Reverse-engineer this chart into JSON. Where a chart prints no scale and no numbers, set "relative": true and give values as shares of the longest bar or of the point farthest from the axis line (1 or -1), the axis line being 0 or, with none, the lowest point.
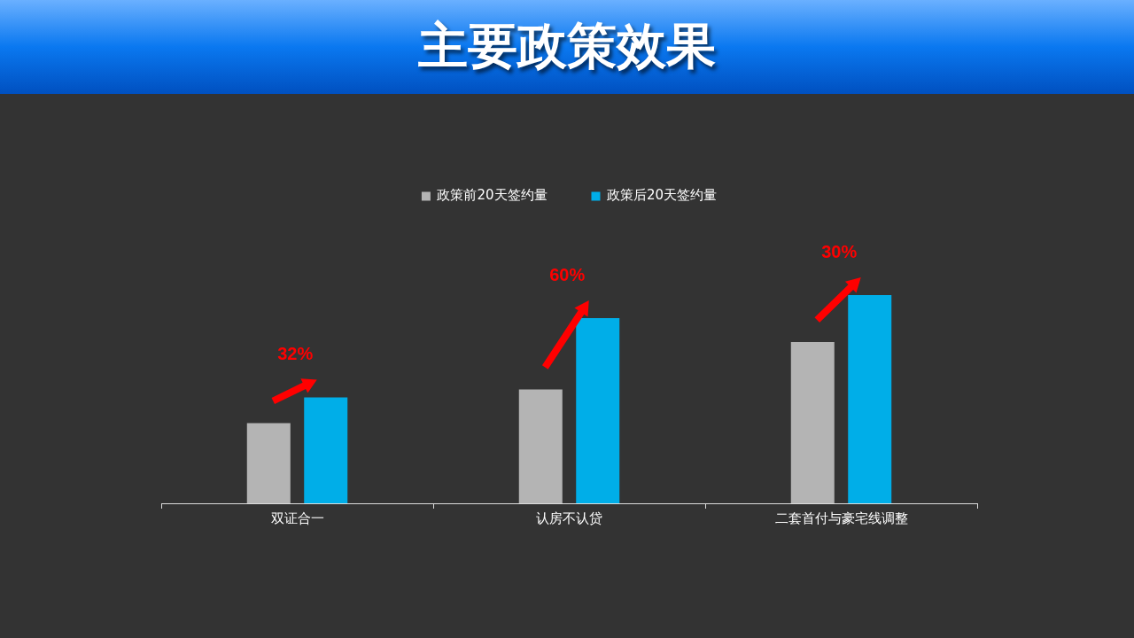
{
  "chart_data": {
    "type": "bar",
    "title": "主要政策效果",
    "relative": true,
    "legend": "top",
    "categories": [
      "双证合一",
      "认房不认贷",
      "二套首付与豪宅线调整"
    ],
    "series": [
      {
        "name": "政策前20天签约量",
        "color": "#b4b4b4",
        "values": [
          0.385,
          0.547,
          0.774
        ]
      },
      {
        "name": "政策后20天签约量",
        "color": "#00aee8",
        "values": [
          0.509,
          0.889,
          1
        ]
      }
    ],
    "annotations": [
      "32%",
      "60%",
      "30%"
    ]
  }
}
